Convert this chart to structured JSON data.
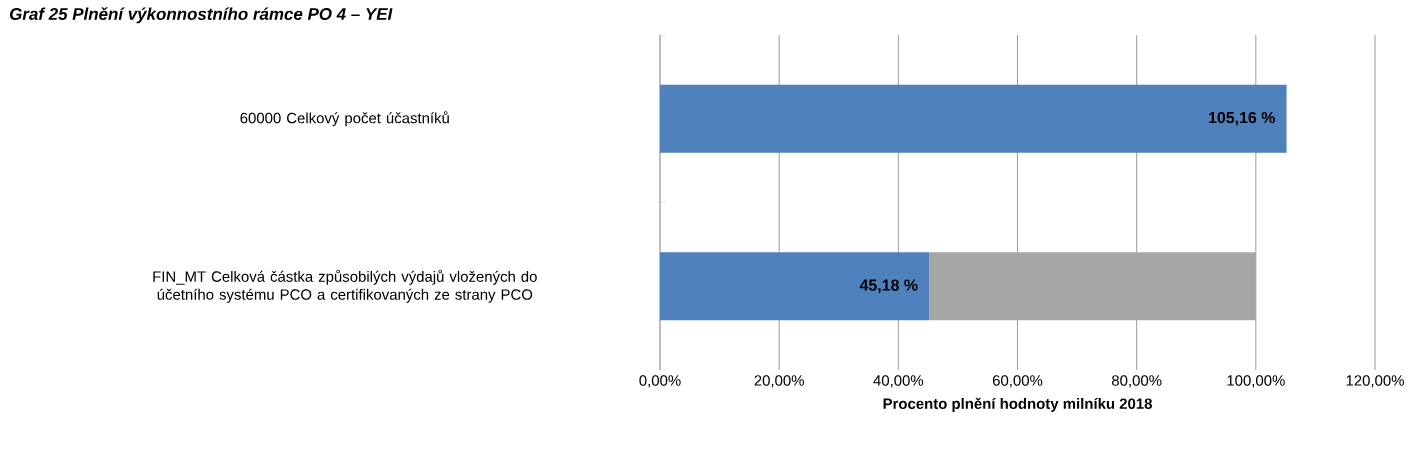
{
  "chart_data": {
    "type": "bar",
    "orientation": "horizontal",
    "stacked": true,
    "title": "Graf 25 Plnění výkonnostního rámce PO 4 – YEI",
    "xlabel": "Procento plnění hodnoty milníku 2018",
    "categories": [
      "60000 Celkový počet účastníků",
      "FIN_MT Celková částka způsobilých výdajů vložených do účetního systému PCO a certifikovaných ze strany PCO"
    ],
    "series": [
      {
        "color": "#4f81bd",
        "values": [
          105.16,
          45.18
        ],
        "value_labels": [
          "105,16 %",
          "45,18 %"
        ]
      },
      {
        "color": "#a6a6a6",
        "values": [
          null,
          54.82
        ]
      }
    ],
    "xlim": [
      0,
      120
    ],
    "xticks": [
      {
        "value": 0,
        "label": "0,00%"
      },
      {
        "value": 20,
        "label": "20,00%"
      },
      {
        "value": 40,
        "label": "40,00%"
      },
      {
        "value": 60,
        "label": "60,00%"
      },
      {
        "value": 80,
        "label": "80,00%"
      },
      {
        "value": 100,
        "label": "100,00%"
      },
      {
        "value": 120,
        "label": "120,00%"
      }
    ],
    "grid": "x"
  }
}
